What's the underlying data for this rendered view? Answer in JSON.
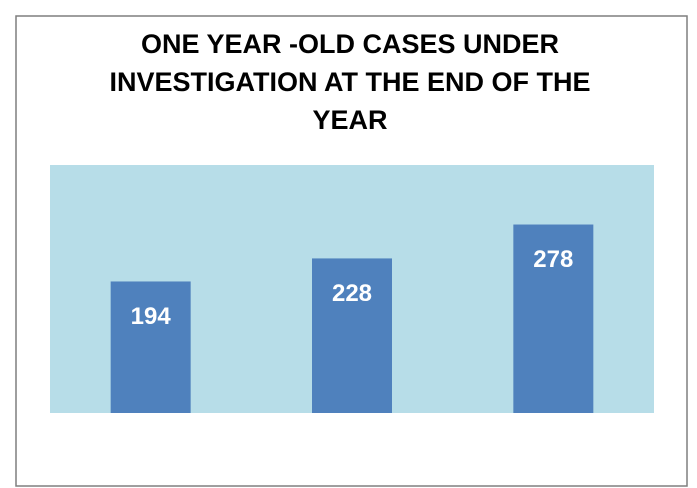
{
  "chart_data": {
    "type": "bar",
    "title": "ONE YEAR -OLD CASES UNDER INVESTIGATION AT THE END OF THE YEAR",
    "categories": [
      null,
      null,
      null
    ],
    "values": [
      194,
      228,
      278
    ],
    "color": "#4f81bd",
    "plot_background": "#b7dde8"
  }
}
